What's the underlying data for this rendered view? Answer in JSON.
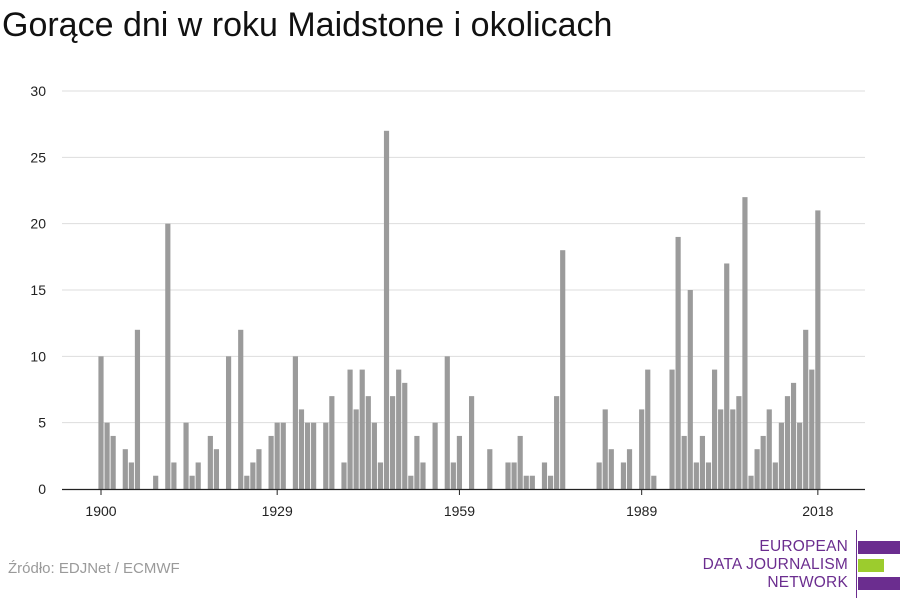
{
  "chart_data": {
    "type": "bar",
    "title": "Gorące dni w roku Maidstone i okolicach",
    "x": [
      1900,
      1901,
      1902,
      1903,
      1904,
      1905,
      1906,
      1907,
      1908,
      1909,
      1910,
      1911,
      1912,
      1913,
      1914,
      1915,
      1916,
      1917,
      1918,
      1919,
      1920,
      1921,
      1922,
      1923,
      1924,
      1925,
      1926,
      1927,
      1928,
      1929,
      1930,
      1931,
      1932,
      1933,
      1934,
      1935,
      1936,
      1937,
      1938,
      1939,
      1940,
      1941,
      1942,
      1943,
      1944,
      1945,
      1946,
      1947,
      1948,
      1949,
      1950,
      1951,
      1952,
      1953,
      1954,
      1955,
      1956,
      1957,
      1958,
      1959,
      1960,
      1961,
      1962,
      1963,
      1964,
      1965,
      1966,
      1967,
      1968,
      1969,
      1970,
      1971,
      1972,
      1973,
      1974,
      1975,
      1976,
      1977,
      1978,
      1979,
      1980,
      1981,
      1982,
      1983,
      1984,
      1985,
      1986,
      1987,
      1988,
      1989,
      1990,
      1991,
      1992,
      1993,
      1994,
      1995,
      1996,
      1997,
      1998,
      1999,
      2000,
      2001,
      2002,
      2003,
      2004,
      2005,
      2006,
      2007,
      2008,
      2009,
      2010,
      2011,
      2012,
      2013,
      2014,
      2015,
      2016,
      2017,
      2018
    ],
    "values": [
      10,
      5,
      4,
      0,
      3,
      2,
      12,
      0,
      0,
      1,
      0,
      20,
      2,
      0,
      5,
      1,
      2,
      0,
      4,
      3,
      0,
      10,
      0,
      12,
      1,
      2,
      3,
      0,
      4,
      5,
      5,
      0,
      10,
      6,
      5,
      5,
      0,
      5,
      7,
      0,
      2,
      9,
      6,
      9,
      7,
      5,
      2,
      27,
      7,
      9,
      8,
      1,
      4,
      2,
      0,
      5,
      0,
      10,
      2,
      4,
      0,
      7,
      0,
      0,
      3,
      0,
      0,
      2,
      2,
      4,
      1,
      1,
      0,
      2,
      1,
      7,
      18,
      0,
      0,
      0,
      0,
      0,
      2,
      6,
      3,
      0,
      2,
      3,
      0,
      6,
      9,
      1,
      0,
      0,
      9,
      19,
      4,
      15,
      2,
      4,
      2,
      9,
      6,
      17,
      6,
      7,
      22,
      1,
      3,
      4,
      6,
      2,
      5,
      7,
      8,
      5,
      12,
      9,
      21
    ],
    "xticks": [
      "1900",
      "1929",
      "1959",
      "1989",
      "2018"
    ],
    "xtick_values": [
      1900,
      1929,
      1959,
      1989,
      2018
    ],
    "yticks": [
      "0",
      "5",
      "10",
      "15",
      "20",
      "25",
      "30"
    ],
    "ylim": [
      0,
      30
    ],
    "grid": true,
    "bar_color": "#9b9b9b"
  },
  "source": "Źródło: EDJNet / ECMWF",
  "logo": {
    "lines": [
      "EUROPEAN",
      "DATA JOURNALISM",
      "NETWORK"
    ],
    "colors": {
      "purple": "#6b2d8f",
      "green": "#9ccc2d"
    }
  }
}
